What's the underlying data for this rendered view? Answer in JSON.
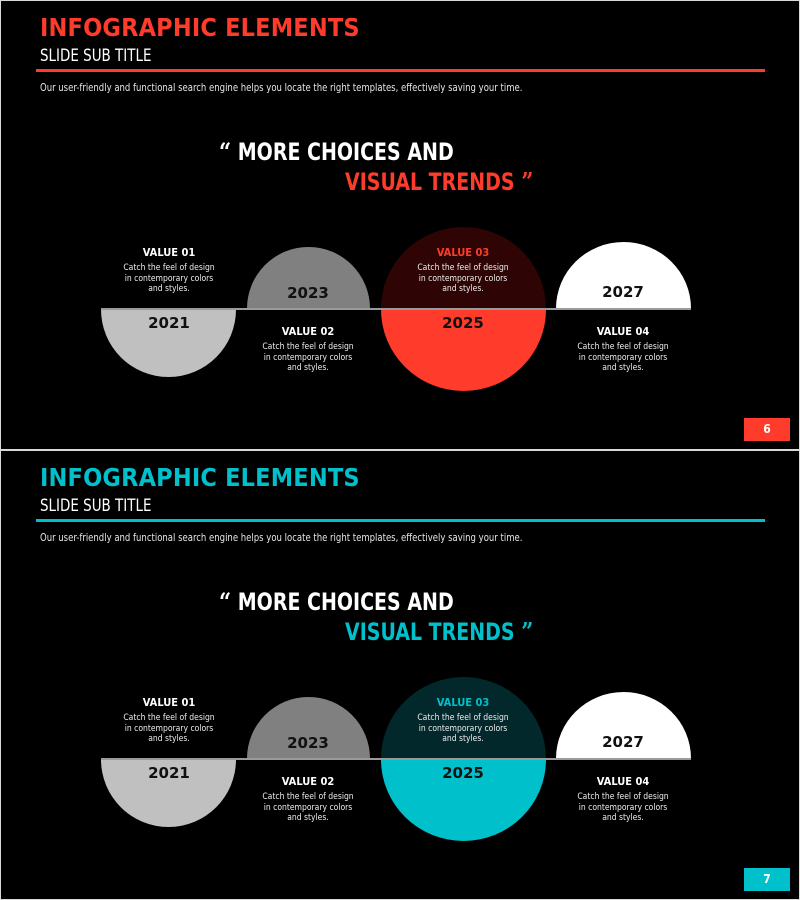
{
  "slides": [
    {
      "accent": "#ff3b2b",
      "title": "INFOGRAPHIC ELEMENTS",
      "subtitle": "SLIDE SUB TITLE",
      "description": "Our user-friendly and functional search engine helps you locate the right templates, effectively saving your time.",
      "quote_line1": "MORE CHOICES AND",
      "quote_line2": "VISUAL TRENDS",
      "open_quote": "“",
      "close_quote": "”",
      "years": [
        "2021",
        "2023",
        "2025",
        "2027"
      ],
      "values": [
        {
          "title": "VALUE 01",
          "lines": [
            "Catch the feel of design",
            "in contemporary colors",
            "and styles."
          ]
        },
        {
          "title": "VALUE 02",
          "lines": [
            "Catch the feel of design",
            "in contemporary colors",
            "and styles."
          ]
        },
        {
          "title": "VALUE 03",
          "lines": [
            "Catch the feel of design",
            "in contemporary colors",
            "and styles."
          ]
        },
        {
          "title": "VALUE 04",
          "lines": [
            "Catch the feel of design",
            "in contemporary colors",
            "and styles."
          ]
        }
      ],
      "page_number": "6"
    },
    {
      "accent": "#00c0cc",
      "title": "INFOGRAPHIC ELEMENTS",
      "subtitle": "SLIDE SUB TITLE",
      "description": "Our user-friendly and functional search engine helps you locate the right templates, effectively saving your time.",
      "quote_line1": "MORE CHOICES AND",
      "quote_line2": "VISUAL TRENDS",
      "open_quote": "“",
      "close_quote": "”",
      "years": [
        "2021",
        "2023",
        "2025",
        "2027"
      ],
      "values": [
        {
          "title": "VALUE 01",
          "lines": [
            "Catch the feel of design",
            "in contemporary colors",
            "and styles."
          ]
        },
        {
          "title": "VALUE 02",
          "lines": [
            "Catch the feel of design",
            "in contemporary colors",
            "and styles."
          ]
        },
        {
          "title": "VALUE 03",
          "lines": [
            "Catch the feel of design",
            "in contemporary colors",
            "and styles."
          ]
        },
        {
          "title": "VALUE 04",
          "lines": [
            "Catch the feel of design",
            "in contemporary colors",
            "and styles."
          ]
        }
      ],
      "page_number": "7"
    }
  ],
  "colors": {
    "gray_light": "#c0c0c0",
    "gray_mid": "#808080",
    "white": "#ffffff",
    "background": "#000000"
  }
}
